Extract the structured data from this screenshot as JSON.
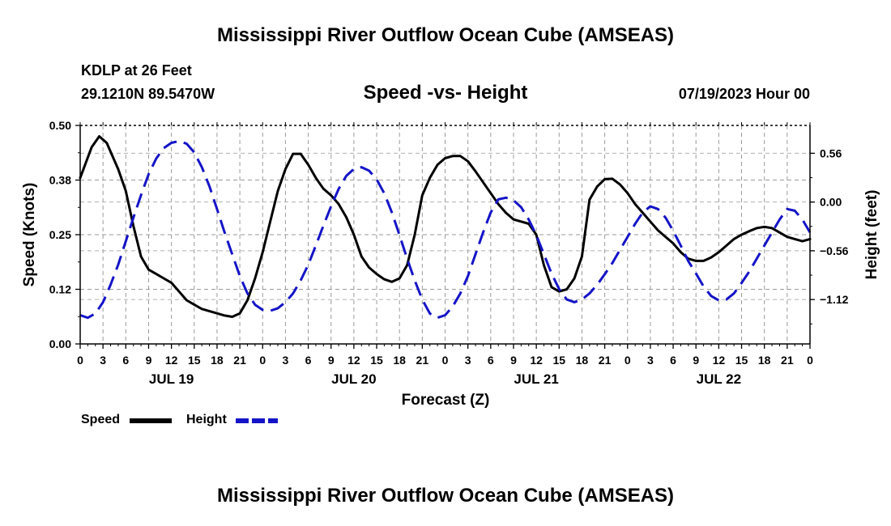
{
  "page": {
    "title_top": "Mississippi River Outflow Ocean Cube (AMSEAS)",
    "title_bottom": "Mississippi River Outflow Ocean Cube (AMSEAS)",
    "station": "KDLP at 26 Feet",
    "coords": "29.1210N  89.5470W",
    "date": "07/19/2023 Hour 00"
  },
  "legend": {
    "speed_label": "Speed",
    "height_label": "Height",
    "speed_color": "#000000",
    "height_color": "#1414c8"
  },
  "chart_data": {
    "type": "line",
    "title": "Speed -vs- Height",
    "xlabel": "Forecast (Z)",
    "ylabel": "Speed (Knots)",
    "y2label": "Height (feet)",
    "xlim": [
      0,
      96
    ],
    "ylim": [
      0,
      0.5
    ],
    "y2lim": [
      -1.63,
      0.88
    ],
    "grid": true,
    "x_ticks": [
      0,
      3,
      6,
      9,
      12,
      15,
      18,
      21,
      24,
      27,
      30,
      33,
      36,
      39,
      42,
      45,
      48,
      51,
      54,
      57,
      60,
      63,
      66,
      69,
      72,
      75,
      78,
      81,
      84,
      87,
      90,
      93,
      96
    ],
    "x_tick_labels": [
      "0",
      "3",
      "6",
      "9",
      "12",
      "15",
      "18",
      "21",
      "0",
      "3",
      "6",
      "9",
      "12",
      "15",
      "18",
      "21",
      "0",
      "3",
      "6",
      "9",
      "12",
      "15",
      "18",
      "21",
      "0",
      "3",
      "6",
      "9",
      "12",
      "15",
      "18",
      "21",
      "0"
    ],
    "day_labels": [
      {
        "x": 12,
        "label": "JUL 19"
      },
      {
        "x": 36,
        "label": "JUL 20"
      },
      {
        "x": 60,
        "label": "JUL 21"
      },
      {
        "x": 84,
        "label": "JUL 22"
      }
    ],
    "y_ticks": [
      0.0,
      0.125,
      0.25,
      0.375,
      0.5
    ],
    "y_tick_labels": [
      "0.00",
      "0.12",
      "0.25",
      "0.38",
      "0.50"
    ],
    "y2_ticks": [
      0.56,
      0.0,
      -0.56,
      -1.12
    ],
    "y2_tick_labels": [
      "0.56",
      "0.00",
      "−0.56",
      "−1.12"
    ],
    "series": [
      {
        "name": "Speed",
        "axis": "left",
        "color": "#000000",
        "dash": "solid",
        "points": [
          [
            0,
            0.38
          ],
          [
            1.5,
            0.45
          ],
          [
            2.5,
            0.475
          ],
          [
            3.5,
            0.46
          ],
          [
            5,
            0.4
          ],
          [
            6,
            0.35
          ],
          [
            7,
            0.27
          ],
          [
            8,
            0.2
          ],
          [
            9,
            0.17
          ],
          [
            10,
            0.16
          ],
          [
            11,
            0.15
          ],
          [
            12,
            0.14
          ],
          [
            13,
            0.12
          ],
          [
            14,
            0.1
          ],
          [
            15,
            0.09
          ],
          [
            16,
            0.08
          ],
          [
            18,
            0.07
          ],
          [
            19,
            0.065
          ],
          [
            20,
            0.062
          ],
          [
            21,
            0.07
          ],
          [
            22,
            0.1
          ],
          [
            23,
            0.15
          ],
          [
            24,
            0.21
          ],
          [
            25,
            0.28
          ],
          [
            26,
            0.35
          ],
          [
            27,
            0.4
          ],
          [
            28,
            0.435
          ],
          [
            29,
            0.435
          ],
          [
            30,
            0.41
          ],
          [
            31,
            0.38
          ],
          [
            32,
            0.355
          ],
          [
            33,
            0.34
          ],
          [
            34,
            0.32
          ],
          [
            35,
            0.29
          ],
          [
            36,
            0.25
          ],
          [
            37,
            0.2
          ],
          [
            38,
            0.175
          ],
          [
            39,
            0.16
          ],
          [
            40,
            0.148
          ],
          [
            41,
            0.142
          ],
          [
            42,
            0.15
          ],
          [
            43,
            0.18
          ],
          [
            44,
            0.25
          ],
          [
            45,
            0.34
          ],
          [
            46,
            0.38
          ],
          [
            47,
            0.41
          ],
          [
            48,
            0.425
          ],
          [
            49,
            0.43
          ],
          [
            50,
            0.43
          ],
          [
            51,
            0.418
          ],
          [
            52,
            0.395
          ],
          [
            53,
            0.37
          ],
          [
            54,
            0.345
          ],
          [
            55,
            0.32
          ],
          [
            56,
            0.3
          ],
          [
            57,
            0.285
          ],
          [
            58,
            0.28
          ],
          [
            59,
            0.275
          ],
          [
            60,
            0.25
          ],
          [
            61,
            0.18
          ],
          [
            62,
            0.13
          ],
          [
            63,
            0.12
          ],
          [
            64,
            0.125
          ],
          [
            65,
            0.15
          ],
          [
            66,
            0.2
          ],
          [
            67,
            0.33
          ],
          [
            68,
            0.36
          ],
          [
            69,
            0.377
          ],
          [
            70,
            0.378
          ],
          [
            71,
            0.365
          ],
          [
            72,
            0.345
          ],
          [
            73,
            0.32
          ],
          [
            74,
            0.3
          ],
          [
            75,
            0.28
          ],
          [
            76,
            0.26
          ],
          [
            77,
            0.245
          ],
          [
            78,
            0.23
          ],
          [
            79,
            0.21
          ],
          [
            80,
            0.195
          ],
          [
            81,
            0.19
          ],
          [
            82,
            0.19
          ],
          [
            83,
            0.198
          ],
          [
            84,
            0.21
          ],
          [
            85,
            0.225
          ],
          [
            86,
            0.24
          ],
          [
            87,
            0.25
          ],
          [
            88,
            0.258
          ],
          [
            89,
            0.265
          ],
          [
            90,
            0.268
          ],
          [
            91,
            0.265
          ],
          [
            92,
            0.255
          ],
          [
            93,
            0.245
          ],
          [
            94,
            0.24
          ],
          [
            95,
            0.235
          ],
          [
            96,
            0.24
          ]
        ]
      },
      {
        "name": "Height",
        "axis": "right",
        "color": "#1414c8",
        "dash": "dashed",
        "points": [
          [
            0,
            -1.3
          ],
          [
            1,
            -1.33
          ],
          [
            2,
            -1.28
          ],
          [
            3,
            -1.15
          ],
          [
            4,
            -0.95
          ],
          [
            5,
            -0.72
          ],
          [
            6,
            -0.45
          ],
          [
            7,
            -0.18
          ],
          [
            8,
            0.08
          ],
          [
            9,
            0.32
          ],
          [
            10,
            0.5
          ],
          [
            11,
            0.62
          ],
          [
            12,
            0.68
          ],
          [
            13,
            0.7
          ],
          [
            14,
            0.67
          ],
          [
            15,
            0.57
          ],
          [
            16,
            0.4
          ],
          [
            17,
            0.18
          ],
          [
            18,
            -0.08
          ],
          [
            19,
            -0.35
          ],
          [
            20,
            -0.6
          ],
          [
            21,
            -0.85
          ],
          [
            22,
            -1.05
          ],
          [
            23,
            -1.18
          ],
          [
            24,
            -1.24
          ],
          [
            25,
            -1.25
          ],
          [
            26,
            -1.22
          ],
          [
            27,
            -1.15
          ],
          [
            28,
            -1.05
          ],
          [
            29,
            -0.9
          ],
          [
            30,
            -0.72
          ],
          [
            31,
            -0.5
          ],
          [
            32,
            -0.27
          ],
          [
            33,
            -0.05
          ],
          [
            34,
            0.15
          ],
          [
            35,
            0.3
          ],
          [
            36,
            0.38
          ],
          [
            37,
            0.4
          ],
          [
            38,
            0.36
          ],
          [
            39,
            0.26
          ],
          [
            40,
            0.1
          ],
          [
            41,
            -0.12
          ],
          [
            42,
            -0.38
          ],
          [
            43,
            -0.65
          ],
          [
            44,
            -0.9
          ],
          [
            45,
            -1.12
          ],
          [
            46,
            -1.28
          ],
          [
            47,
            -1.33
          ],
          [
            48,
            -1.3
          ],
          [
            49,
            -1.2
          ],
          [
            50,
            -1.05
          ],
          [
            51,
            -0.85
          ],
          [
            52,
            -0.6
          ],
          [
            53,
            -0.35
          ],
          [
            54,
            -0.12
          ],
          [
            55,
            0.03
          ],
          [
            56,
            0.05
          ],
          [
            57,
            0.02
          ],
          [
            58,
            -0.06
          ],
          [
            59,
            -0.2
          ],
          [
            60,
            -0.38
          ],
          [
            61,
            -0.6
          ],
          [
            62,
            -0.82
          ],
          [
            63,
            -1.0
          ],
          [
            64,
            -1.12
          ],
          [
            65,
            -1.15
          ],
          [
            66,
            -1.12
          ],
          [
            67,
            -1.05
          ],
          [
            68,
            -0.95
          ],
          [
            69,
            -0.83
          ],
          [
            70,
            -0.7
          ],
          [
            71,
            -0.55
          ],
          [
            72,
            -0.4
          ],
          [
            73,
            -0.25
          ],
          [
            74,
            -0.12
          ],
          [
            75,
            -0.05
          ],
          [
            76,
            -0.08
          ],
          [
            77,
            -0.18
          ],
          [
            78,
            -0.33
          ],
          [
            79,
            -0.5
          ],
          [
            80,
            -0.68
          ],
          [
            81,
            -0.82
          ],
          [
            82,
            -0.97
          ],
          [
            83,
            -1.08
          ],
          [
            84,
            -1.13
          ],
          [
            85,
            -1.12
          ],
          [
            86,
            -1.05
          ],
          [
            87,
            -0.93
          ],
          [
            88,
            -0.8
          ],
          [
            89,
            -0.65
          ],
          [
            90,
            -0.5
          ],
          [
            91,
            -0.35
          ],
          [
            92,
            -0.2
          ],
          [
            93,
            -0.08
          ],
          [
            94,
            -0.1
          ],
          [
            95,
            -0.2
          ],
          [
            96,
            -0.35
          ]
        ]
      }
    ]
  }
}
